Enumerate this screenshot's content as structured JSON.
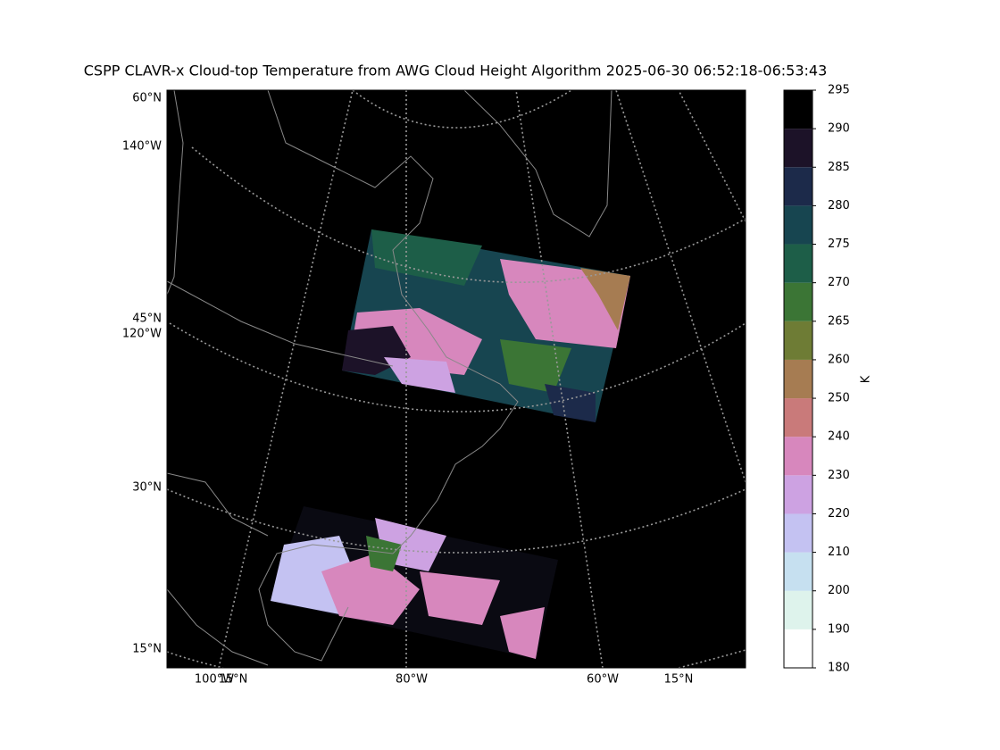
{
  "title": "CSPP CLAVR-x Cloud-top Temperature from AWG Cloud Height Algorithm 2025-06-30 06:52:18-06:53:43",
  "graticule_labels": [
    "60°N",
    "140°W",
    "45°N",
    "120°W",
    "30°N",
    "15°N",
    "100°W",
    "15°N",
    "80°W",
    "60°W",
    "15°N"
  ],
  "colorbar": {
    "label": "K",
    "levels": [
      180,
      190,
      200,
      210,
      220,
      230,
      240,
      250,
      260,
      265,
      270,
      275,
      280,
      285,
      290,
      295
    ],
    "colors": [
      "#ffffff",
      "#def3ec",
      "#c6e0f0",
      "#c4c2f2",
      "#cda2e2",
      "#d787bd",
      "#c97a7a",
      "#a67c52",
      "#6e7c35",
      "#3b7535",
      "#1d5e48",
      "#174550",
      "#1c2a4a",
      "#1c1228",
      "#000000"
    ]
  }
}
